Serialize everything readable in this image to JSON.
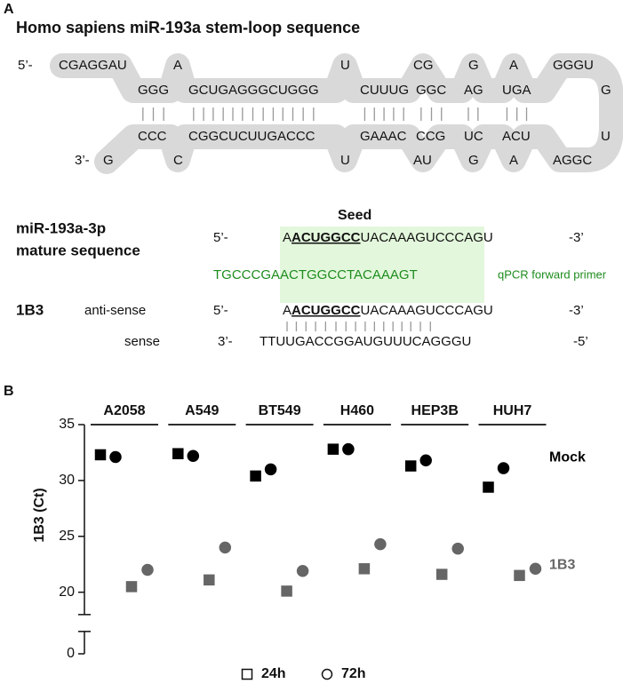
{
  "panel_a": {
    "label": "A",
    "title": "Homo sapiens miR-193a stem-loop sequence",
    "stem_loop": {
      "five_prime": "5’-",
      "three_prime": "3’-",
      "top": [
        "CGAGGAU",
        "A",
        "U",
        "CG",
        "G",
        "A",
        "GGGU"
      ],
      "upper": [
        "GGG",
        "GCUGAGGGCUGGG",
        "CUUUG",
        "GGC",
        "AG",
        "UGA",
        "G"
      ],
      "lower": [
        "CCC",
        "CGGCUCUUGACCC",
        "GAAAC",
        "CCG",
        "UC",
        "ACU",
        "U"
      ],
      "bottom": [
        "G",
        "C",
        "U",
        "AU",
        "G",
        "A",
        "AGGC"
      ]
    },
    "seed_label": "Seed",
    "mature": {
      "name": "miR-193a-3p",
      "name2": "mature sequence",
      "five_prime": "5’-",
      "pre": "A",
      "seed": "ACUGGCC",
      "mid": "UACAAAGU",
      "post": "CCCAGU",
      "three_prime": "-3’"
    },
    "primer": {
      "sequence": "TGCCCGAACTGGCCTACAAAGT",
      "label": "qPCR forward primer"
    },
    "duplex": {
      "name": "1B3",
      "antisense_label": "anti-sense",
      "five_prime": "5’-",
      "pre": "A",
      "seed": "ACUGGCC",
      "mid": "UACAAAGU",
      "post": "CCCAGU",
      "three_prime": "-3’",
      "sense_label": "sense",
      "sense_three_prime": "3’-",
      "sense": "TTUUGACCGGAUGUUUCAGGGU",
      "sense_five_prime": "-5’"
    }
  },
  "panel_b_label": "B",
  "chart_data": {
    "type": "dot",
    "y_label": "1B3 (Ct)",
    "categories": [
      "A2058",
      "A549",
      "BT549",
      "H460",
      "HEP3B",
      "HUH7"
    ],
    "legend": [
      "24h",
      "72h"
    ],
    "markers": [
      "square",
      "circle"
    ],
    "series": [
      {
        "name": "Mock",
        "color": "#000000",
        "values": [
          [
            32.3,
            32.4,
            30.4,
            32.8,
            31.3,
            29.4
          ],
          [
            32.1,
            32.2,
            31.0,
            32.8,
            31.8,
            31.1
          ]
        ]
      },
      {
        "name": "1B3",
        "color": "#666666",
        "values": [
          [
            20.5,
            21.1,
            20.1,
            22.1,
            21.6,
            21.5
          ],
          [
            22.0,
            24.0,
            21.9,
            24.3,
            23.9,
            22.1
          ]
        ]
      }
    ],
    "ylim": [
      0,
      35
    ],
    "axis_break": [
      2,
      18
    ],
    "yticks": [
      0,
      20,
      25,
      30,
      35
    ]
  }
}
